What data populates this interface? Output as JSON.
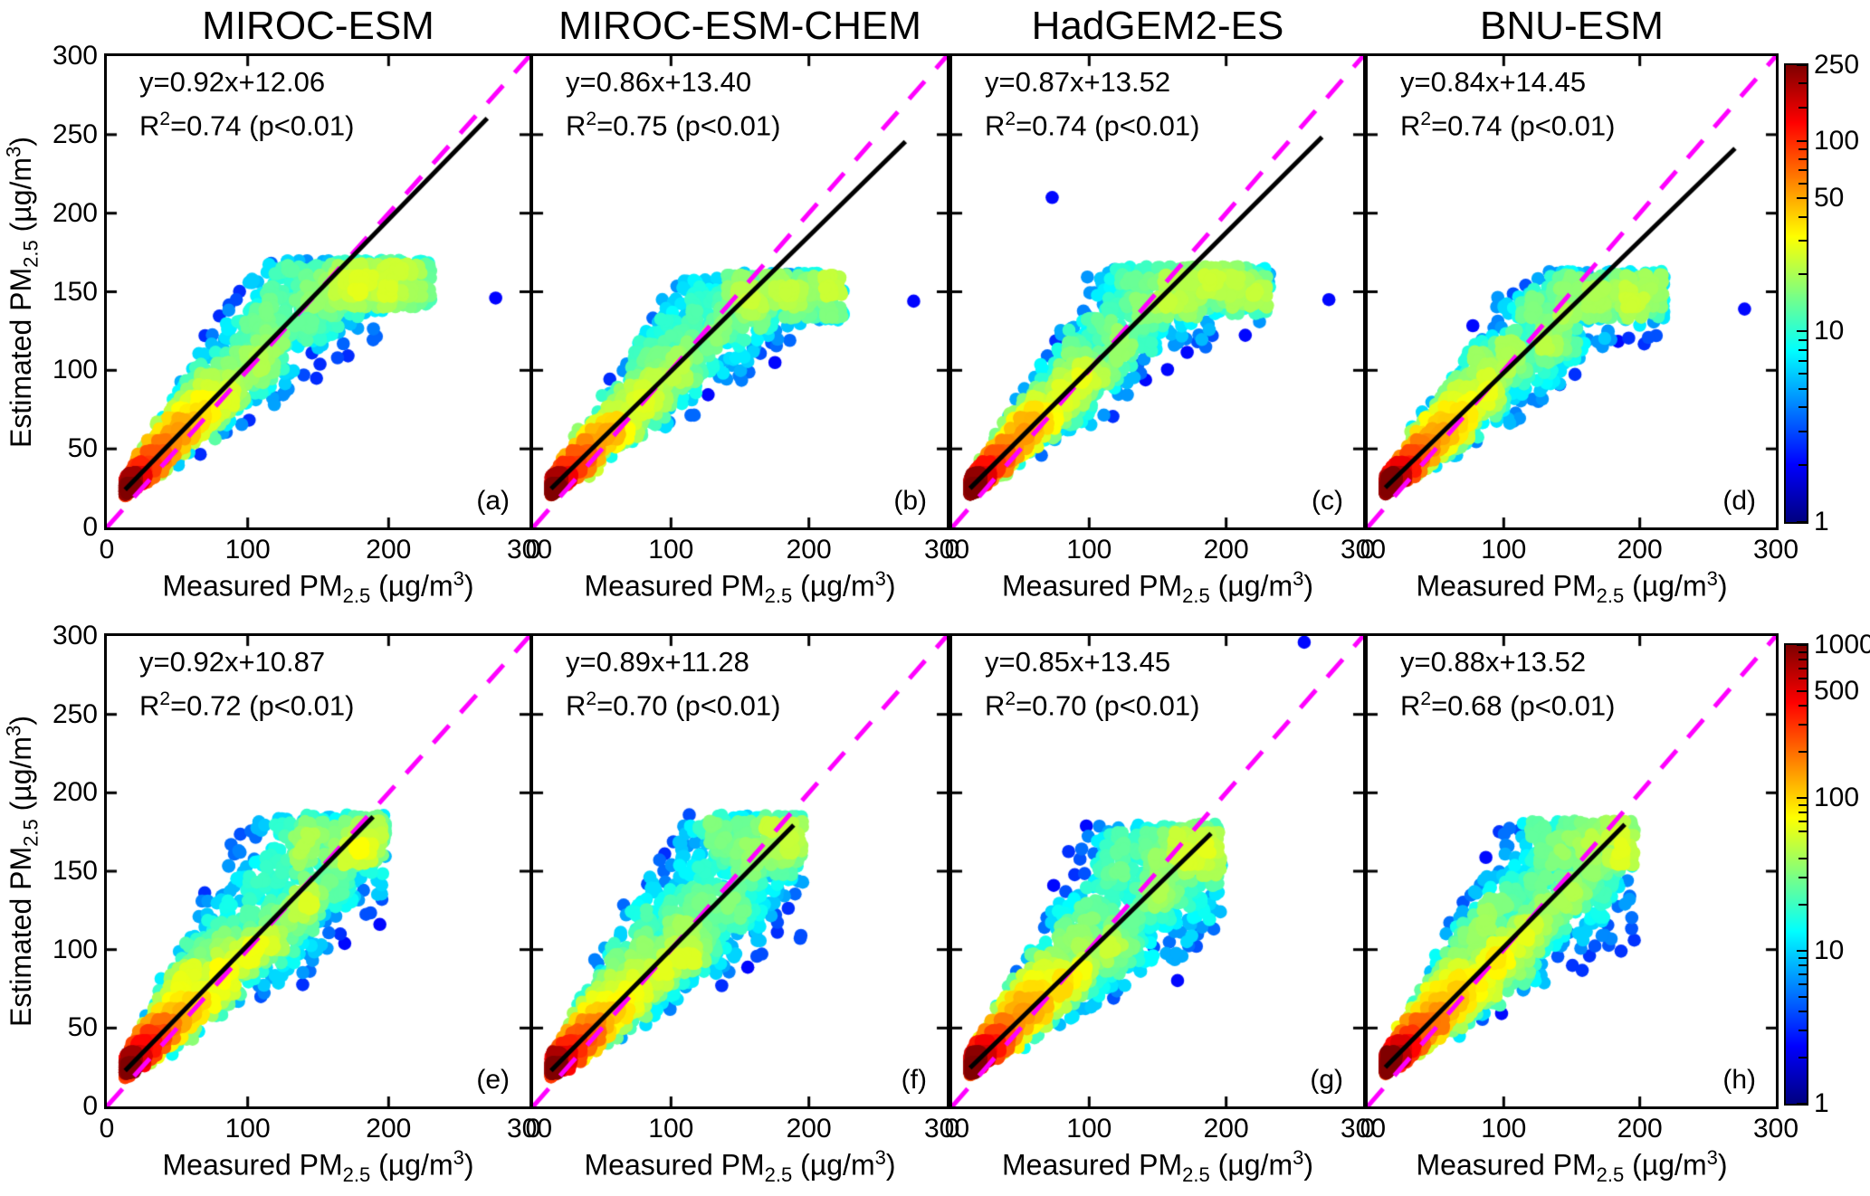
{
  "axes": {
    "x_label_parts": {
      "pre": "Measured PM",
      "sub": "2.5",
      "mid": " (µg/m",
      "sup": "3",
      "post": ")"
    },
    "y_label_parts": {
      "pre": "Estimated PM",
      "sub": "2.5",
      "mid": " (µg/m",
      "sup": "3",
      "post": ")"
    },
    "x_tick_labels": [
      "0",
      "100",
      "200",
      "300"
    ],
    "y_tick_labels": [
      "0",
      "50",
      "100",
      "150",
      "200",
      "250",
      "300"
    ]
  },
  "chart_data": {
    "type": "scatter",
    "subtype": "density-colored scatter grid (2 rows x 4 columns)",
    "colormap": "jet",
    "x_label": "Measured PM2.5 (µg/m3)",
    "y_label": "Estimated PM2.5 (µg/m3)",
    "x_range": [
      0,
      300
    ],
    "y_range": [
      0,
      300
    ],
    "x_ticks": [
      0,
      100,
      200,
      300
    ],
    "y_ticks": [
      0,
      50,
      100,
      150,
      200,
      250,
      300
    ],
    "grid": "off",
    "identity_line": {
      "equation": "y=x",
      "color": "#FF00FF",
      "style": "dashed"
    },
    "regression_line_color": "#000000",
    "density_note": "point clouds reconstructed procedurally from cloud parameters; point color encodes log point density (jet colormap)",
    "colorbars": [
      {
        "row": 1,
        "scale": "log",
        "range": [
          1,
          250
        ],
        "tick_labels": [
          250,
          100,
          50,
          10,
          1
        ],
        "minor_ticks": [
          2,
          3,
          4,
          5,
          6,
          7,
          8,
          9,
          20,
          30,
          40,
          60,
          70,
          80,
          90,
          150,
          200
        ]
      },
      {
        "row": 2,
        "scale": "log",
        "range": [
          1,
          1000
        ],
        "tick_labels": [
          1000,
          500,
          100,
          10,
          1
        ],
        "minor_ticks": [
          2,
          3,
          4,
          5,
          6,
          7,
          8,
          9,
          20,
          30,
          40,
          60,
          70,
          80,
          90,
          200,
          300,
          400,
          600,
          700,
          800,
          900
        ]
      }
    ],
    "panels": [
      {
        "row": 1,
        "col": 0,
        "letter": "(a)",
        "title": "MIROC-ESM",
        "equation": "y=0.92x+12.06",
        "r2_base": "R",
        "r2_sup": "2",
        "r2_rest": "=0.74 (p<0.01)",
        "slope": 0.92,
        "intercept": 12.06,
        "r2": 0.74,
        "p": "p<0.01",
        "regression_line_x": [
          13,
          270
        ],
        "cloud": {
          "n": 2600,
          "seed": 11,
          "x_min": 13,
          "x_max": 230,
          "x_pow": 2.5,
          "spread_base": 7,
          "spread_slope": 0.62,
          "upper": 1.25,
          "lower": 0.72,
          "y_cap": 170,
          "y_floor": 13
        },
        "outliers": [
          [
            276,
            146
          ]
        ]
      },
      {
        "row": 1,
        "col": 1,
        "letter": "(b)",
        "title": "MIROC-ESM-CHEM",
        "equation": "y=0.86x+13.40",
        "r2_base": "R",
        "r2_sup": "2",
        "r2_rest": "=0.75 (p<0.01)",
        "slope": 0.86,
        "intercept": 13.4,
        "r2": 0.75,
        "p": "p<0.01",
        "regression_line_x": [
          13,
          270
        ],
        "cloud": {
          "n": 2250,
          "seed": 22,
          "x_min": 13,
          "x_max": 225,
          "x_pow": 2.5,
          "spread_base": 7,
          "spread_slope": 0.6,
          "upper": 1.22,
          "lower": 0.72,
          "y_cap": 162,
          "y_floor": 13
        },
        "outliers": [
          [
            276,
            144
          ]
        ]
      },
      {
        "row": 1,
        "col": 2,
        "letter": "(c)",
        "title": "HadGEM2-ES",
        "equation": "y=0.87x+13.52",
        "r2_base": "R",
        "r2_sup": "2",
        "r2_rest": "=0.74 (p<0.01)",
        "slope": 0.87,
        "intercept": 13.52,
        "r2": 0.74,
        "p": "p<0.01",
        "regression_line_x": [
          13,
          270
        ],
        "cloud": {
          "n": 2300,
          "seed": 33,
          "x_min": 13,
          "x_max": 232,
          "x_pow": 2.5,
          "spread_base": 7,
          "spread_slope": 0.6,
          "upper": 1.22,
          "lower": 0.72,
          "y_cap": 166,
          "y_floor": 13
        },
        "outliers": [
          [
            73,
            210
          ],
          [
            275,
            145
          ]
        ]
      },
      {
        "row": 1,
        "col": 3,
        "letter": "(d)",
        "title": "BNU-ESM",
        "equation": "y=0.84x+14.45",
        "r2_base": "R",
        "r2_sup": "2",
        "r2_rest": "=0.74 (p<0.01)",
        "slope": 0.84,
        "intercept": 14.45,
        "r2": 0.74,
        "p": "p<0.01",
        "regression_line_x": [
          13,
          270
        ],
        "cloud": {
          "n": 2250,
          "seed": 44,
          "x_min": 13,
          "x_max": 218,
          "x_pow": 2.5,
          "spread_base": 7,
          "spread_slope": 0.6,
          "upper": 1.22,
          "lower": 0.72,
          "y_cap": 163,
          "y_floor": 13
        },
        "outliers": [
          [
            277,
            139
          ]
        ]
      },
      {
        "row": 2,
        "col": 0,
        "letter": "(e)",
        "title": "",
        "equation": "y=0.92x+10.87",
        "r2_base": "R",
        "r2_sup": "2",
        "r2_rest": "=0.72 (p<0.01)",
        "slope": 0.92,
        "intercept": 10.87,
        "r2": 0.72,
        "p": "p<0.01",
        "regression_line_x": [
          13,
          189
        ],
        "cloud": {
          "n": 2450,
          "seed": 55,
          "x_min": 13,
          "x_max": 198,
          "x_pow": 2.15,
          "spread_base": 8,
          "spread_slope": 0.8,
          "upper": 1.32,
          "lower": 0.62,
          "y_cap": 186,
          "y_floor": 15
        },
        "outliers": []
      },
      {
        "row": 2,
        "col": 1,
        "letter": "(f)",
        "title": "",
        "equation": "y=0.89x+11.28",
        "r2_base": "R",
        "r2_sup": "2",
        "r2_rest": "=0.70 (p<0.01)",
        "slope": 0.89,
        "intercept": 11.28,
        "r2": 0.7,
        "p": "p<0.01",
        "regression_line_x": [
          13,
          189
        ],
        "cloud": {
          "n": 2450,
          "seed": 66,
          "x_min": 13,
          "x_max": 196,
          "x_pow": 2.15,
          "spread_base": 8,
          "spread_slope": 0.8,
          "upper": 1.32,
          "lower": 0.62,
          "y_cap": 186,
          "y_floor": 15
        },
        "outliers": []
      },
      {
        "row": 2,
        "col": 2,
        "letter": "(g)",
        "title": "",
        "equation": "y=0.85x+13.45",
        "r2_base": "R",
        "r2_sup": "2",
        "r2_rest": "=0.70 (p<0.01)",
        "slope": 0.85,
        "intercept": 13.45,
        "r2": 0.7,
        "p": "p<0.01",
        "regression_line_x": [
          13,
          189
        ],
        "cloud": {
          "n": 2450,
          "seed": 77,
          "x_min": 13,
          "x_max": 197,
          "x_pow": 2.15,
          "spread_base": 8,
          "spread_slope": 0.78,
          "upper": 1.3,
          "lower": 0.62,
          "y_cap": 180,
          "y_floor": 15
        },
        "outliers": [
          [
            257,
            296
          ]
        ]
      },
      {
        "row": 2,
        "col": 3,
        "letter": "(h)",
        "title": "",
        "equation": "y=0.88x+13.52",
        "r2_base": "R",
        "r2_sup": "2",
        "r2_rest": "=0.68 (p<0.01)",
        "slope": 0.88,
        "intercept": 13.52,
        "r2": 0.68,
        "p": "p<0.01",
        "regression_line_x": [
          13,
          189
        ],
        "cloud": {
          "n": 2450,
          "seed": 88,
          "x_min": 13,
          "x_max": 196,
          "x_pow": 2.15,
          "spread_base": 8,
          "spread_slope": 0.78,
          "upper": 1.3,
          "lower": 0.62,
          "y_cap": 182,
          "y_floor": 15
        },
        "outliers": []
      }
    ]
  }
}
